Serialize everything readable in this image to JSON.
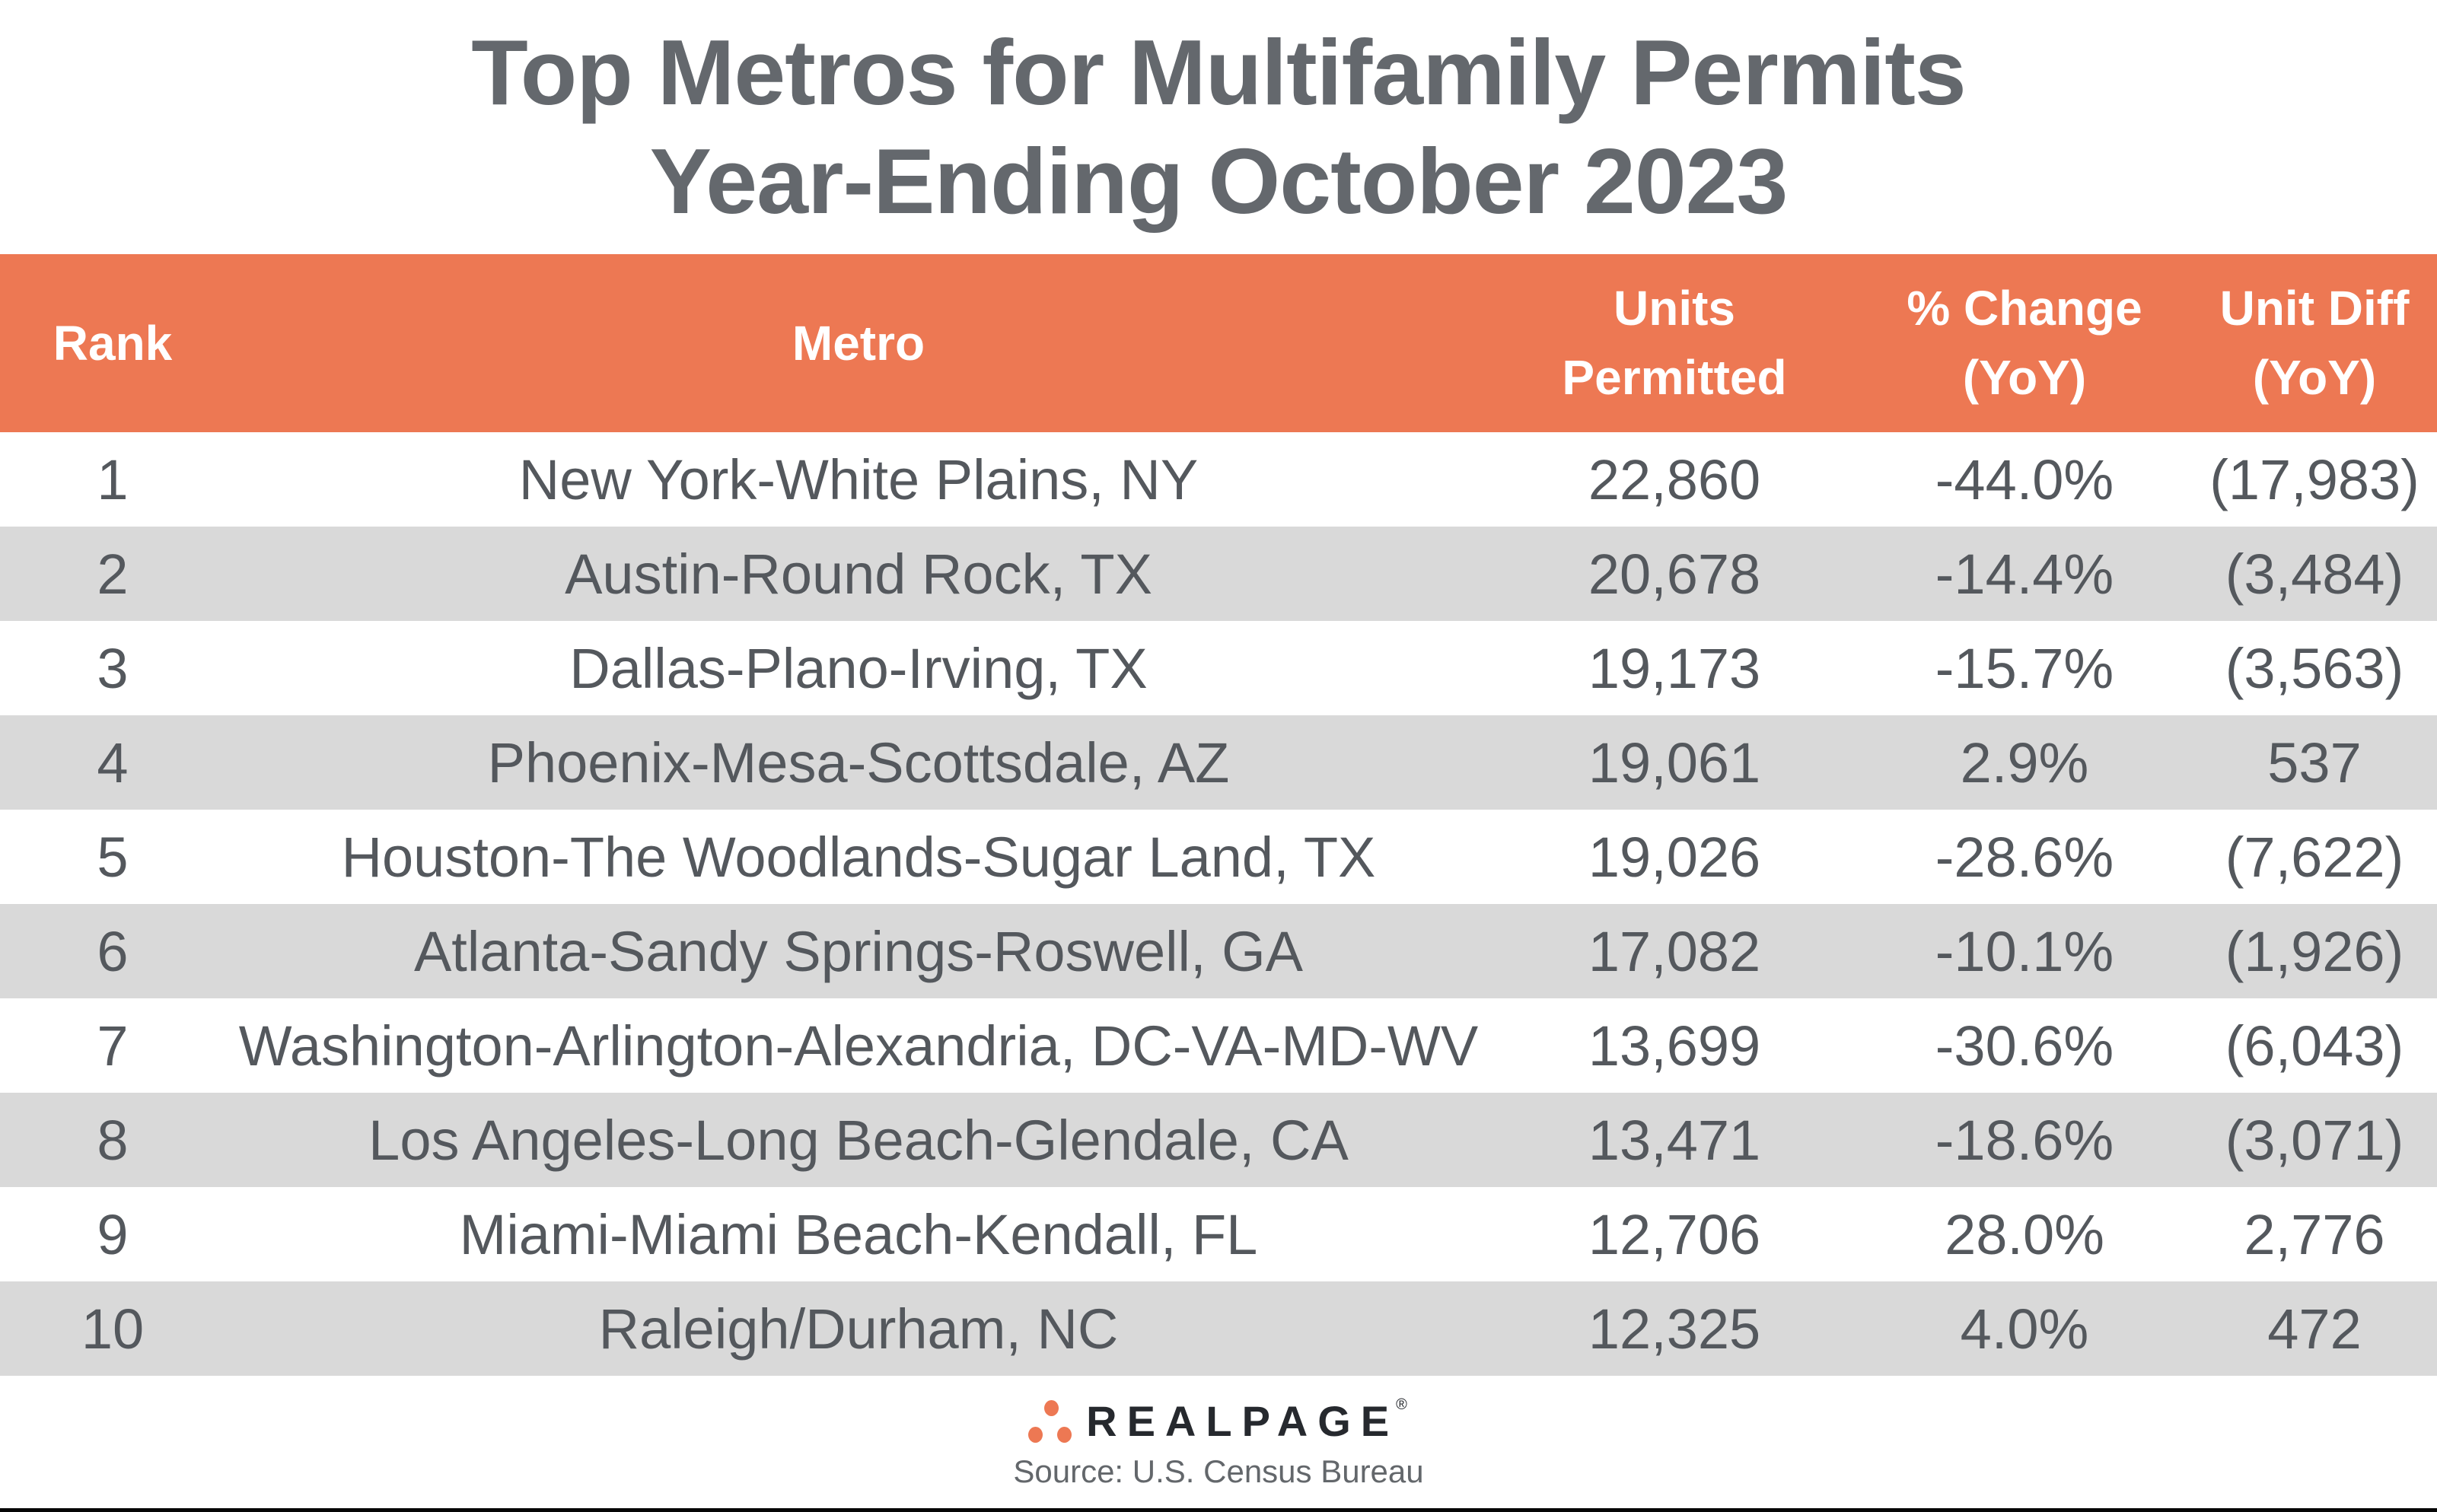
{
  "title": {
    "line1": "Top Metros for Multifamily Permits",
    "line2": "Year-Ending October 2023"
  },
  "table": {
    "headers": {
      "rank": "Rank",
      "metro": "Metro",
      "units": "Units\nPermitted",
      "change": "% Change\n(YoY)",
      "diff": "Unit Diff\n(YoY)"
    },
    "rows": [
      {
        "rank": "1",
        "metro": "New York-White Plains, NY",
        "units": "22,860",
        "change": "-44.0%",
        "diff": "(17,983)"
      },
      {
        "rank": "2",
        "metro": "Austin-Round Rock, TX",
        "units": "20,678",
        "change": "-14.4%",
        "diff": "(3,484)"
      },
      {
        "rank": "3",
        "metro": "Dallas-Plano-Irving, TX",
        "units": "19,173",
        "change": "-15.7%",
        "diff": "(3,563)"
      },
      {
        "rank": "4",
        "metro": "Phoenix-Mesa-Scottsdale, AZ",
        "units": "19,061",
        "change": "2.9%",
        "diff": "537"
      },
      {
        "rank": "5",
        "metro": "Houston-The Woodlands-Sugar Land, TX",
        "units": "19,026",
        "change": "-28.6%",
        "diff": "(7,622)"
      },
      {
        "rank": "6",
        "metro": "Atlanta-Sandy Springs-Roswell, GA",
        "units": "17,082",
        "change": "-10.1%",
        "diff": "(1,926)"
      },
      {
        "rank": "7",
        "metro": "Washington-Arlington-Alexandria, DC-VA-MD-WV",
        "units": "13,699",
        "change": "-30.6%",
        "diff": "(6,043)"
      },
      {
        "rank": "8",
        "metro": "Los Angeles-Long Beach-Glendale, CA",
        "units": "13,471",
        "change": "-18.6%",
        "diff": "(3,071)"
      },
      {
        "rank": "9",
        "metro": "Miami-Miami Beach-Kendall, FL",
        "units": "12,706",
        "change": "28.0%",
        "diff": "2,776"
      },
      {
        "rank": "10",
        "metro": "Raleigh/Durham, NC",
        "units": "12,325",
        "change": "4.0%",
        "diff": "472"
      }
    ]
  },
  "footer": {
    "logo_text": "REALPAGE",
    "logo_registered": "®",
    "source": "Source: U.S. Census Bureau"
  },
  "colors": {
    "header_bg": "#ED7853",
    "header_text": "#FFFFFF",
    "alt_row_bg": "#D9D9D9",
    "body_text": "#54585D",
    "title_text": "#64686D",
    "logo_dots": "#ED7853",
    "logo_text": "#26292E",
    "source_text": "#63676B",
    "bottom_bar": "#060606"
  },
  "chart_data": {
    "type": "table",
    "title": "Top Metros for Multifamily Permits Year-Ending October 2023",
    "columns": [
      "Rank",
      "Metro",
      "Units Permitted",
      "% Change (YoY)",
      "Unit Diff (YoY)"
    ],
    "rows": [
      [
        1,
        "New York-White Plains, NY",
        22860,
        -44.0,
        -17983
      ],
      [
        2,
        "Austin-Round Rock, TX",
        20678,
        -14.4,
        -3484
      ],
      [
        3,
        "Dallas-Plano-Irving, TX",
        19173,
        -15.7,
        -3563
      ],
      [
        4,
        "Phoenix-Mesa-Scottsdale, AZ",
        19061,
        2.9,
        537
      ],
      [
        5,
        "Houston-The Woodlands-Sugar Land, TX",
        19026,
        -28.6,
        -7622
      ],
      [
        6,
        "Atlanta-Sandy Springs-Roswell, GA",
        17082,
        -10.1,
        -1926
      ],
      [
        7,
        "Washington-Arlington-Alexandria, DC-VA-MD-WV",
        13699,
        -30.6,
        -6043
      ],
      [
        8,
        "Los Angeles-Long Beach-Glendale, CA",
        13471,
        -18.6,
        -3071
      ],
      [
        9,
        "Miami-Miami Beach-Kendall, FL",
        12706,
        28.0,
        2776
      ],
      [
        10,
        "Raleigh/Durham, NC",
        12325,
        4.0,
        472
      ]
    ],
    "notes": "Negative Unit Diff values shown in parentheses; rows alternate white / light-gray backgrounds; source: U.S. Census Bureau"
  }
}
